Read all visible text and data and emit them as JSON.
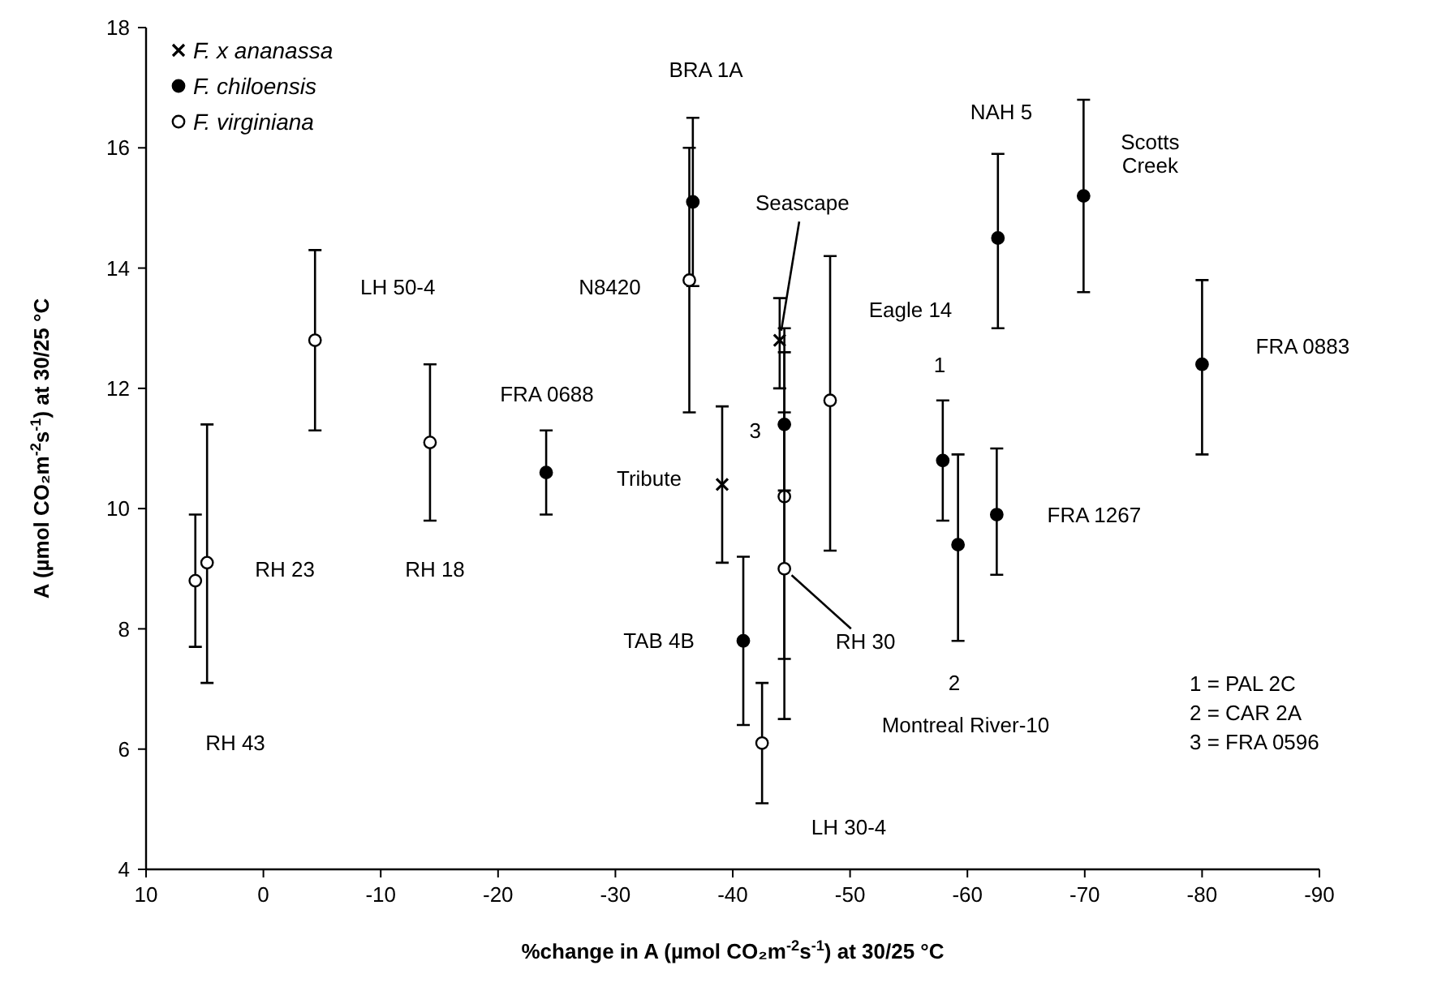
{
  "chart_data": {
    "type": "scatter",
    "xlabel": "%change in A (µmol CO₂m$^{-2}$s$^{-1}$) at 30/25 °C",
    "ylabel": "A (µmol CO₂m$^{-2}$s$^{-1}$) at 30/25 °C",
    "xlim": [
      10,
      -90
    ],
    "xticks": [
      10,
      0,
      -10,
      -20,
      -30,
      -40,
      -50,
      -60,
      -70,
      -80,
      -90
    ],
    "ylim": [
      4,
      18
    ],
    "yticks": [
      4,
      6,
      8,
      10,
      12,
      14,
      16,
      18
    ],
    "grid": false,
    "legend": "top left",
    "series": [
      {
        "name": "F. x ananassa",
        "color": "#000000",
        "marker": "cross",
        "x": [
          -39.1,
          -44.0
        ],
        "values": [
          10.4,
          12.8
        ],
        "errors": [
          [
            9.1,
            11.7
          ],
          [
            12.0,
            13.5
          ]
        ]
      },
      {
        "name": "F. chiloensis",
        "color": "#000000",
        "marker": "circle",
        "x": [
          -24.1,
          -36.6,
          -40.9,
          -44.4,
          -57.9,
          -59.2,
          -62.5,
          -62.6,
          -69.9,
          -80.0
        ],
        "values": [
          10.6,
          15.1,
          7.8,
          11.4,
          10.8,
          9.4,
          9.9,
          14.5,
          15.2,
          12.4
        ],
        "errors": [
          [
            9.9,
            11.3
          ],
          [
            13.7,
            16.5
          ],
          [
            6.4,
            9.2
          ],
          [
            10.3,
            12.6
          ],
          [
            9.8,
            11.8
          ],
          [
            7.8,
            10.9
          ],
          [
            8.9,
            11.0
          ],
          [
            13.0,
            15.9
          ],
          [
            13.6,
            16.8
          ],
          [
            10.9,
            13.8
          ]
        ]
      },
      {
        "name": "F. virginiana",
        "color": "#ffffff",
        "marker": "circle",
        "x": [
          5.8,
          4.8,
          -4.4,
          -14.2,
          -36.3,
          -42.5,
          -44.4,
          -44.4,
          -48.3
        ],
        "values": [
          8.8,
          9.1,
          12.8,
          11.1,
          13.8,
          6.1,
          10.2,
          9.0,
          11.8
        ],
        "errors": [
          [
            7.7,
            9.9
          ],
          [
            7.1,
            11.4
          ],
          [
            11.3,
            14.3
          ],
          [
            9.8,
            12.4
          ],
          [
            11.6,
            16.0
          ],
          [
            5.1,
            7.1
          ],
          [
            7.5,
            13.0
          ],
          [
            6.5,
            11.6
          ],
          [
            9.3,
            14.2
          ]
        ]
      }
    ],
    "annotations": [
      "RH 43",
      {
        "text": "RH 23",
        "x": 4.8,
        "y": 9.1
      },
      {
        "text": "LH 50-4",
        "x": -4.4,
        "y": 12.8
      },
      "RH 18",
      "FRA 0688",
      "BRA 1A",
      {
        "text": "N8420",
        "x": -36.3,
        "y": 13.8
      },
      {
        "text": "Seascape",
        "x": -44.0,
        "y": 12.8
      },
      {
        "text": "Tribute",
        "x": -39.1,
        "y": 10.4
      },
      {
        "text": "3",
        "x": -44.4,
        "y": 11.4
      },
      {
        "text": "TAB 4B",
        "x": -40.9,
        "y": 7.8
      },
      {
        "text": "RH 30",
        "x": -44.4,
        "y": 9.0
      },
      "Montreal River-10",
      "LH 30-4",
      "Eagle 14",
      "1",
      "2",
      "NAH 5",
      {
        "text": "Scotts\nCreek",
        "x": -69.9,
        "y": 15.2
      },
      {
        "text": "FRA 0883",
        "x": -80.0,
        "y": 12.4
      },
      {
        "text": "FRA 1267",
        "x": -62.5,
        "y": 9.9
      },
      "1 = PAL 2C",
      "2 = CAR 2A",
      "3 = FRA 0596"
    ]
  }
}
